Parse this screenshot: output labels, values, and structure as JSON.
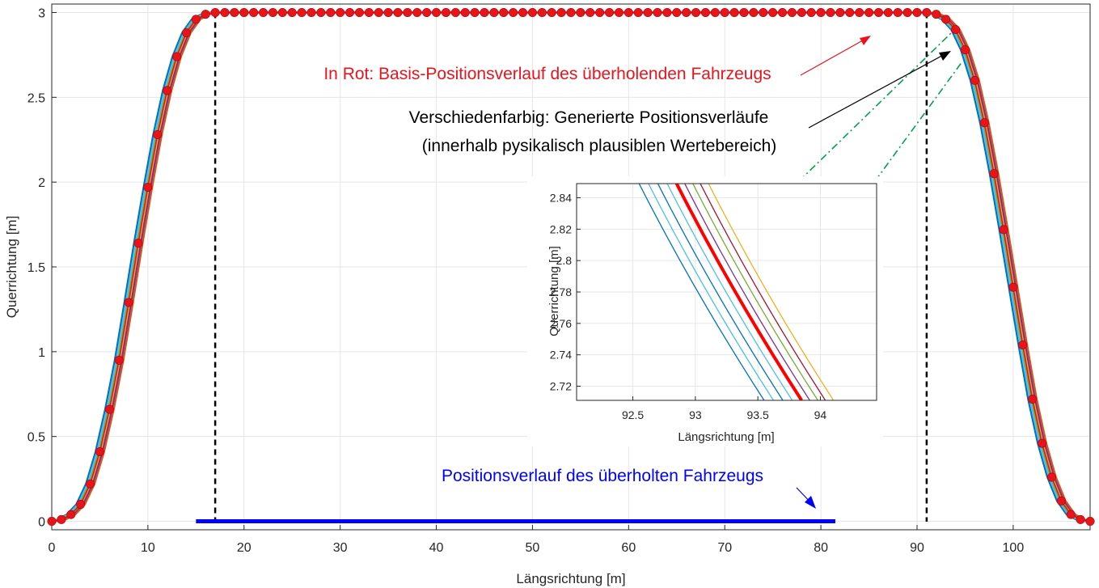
{
  "chart_data": {
    "type": "line",
    "xlabel": "Längsrichtung [m]",
    "ylabel": "Querrichtung [m]",
    "xlim": [
      0,
      108
    ],
    "ylim": [
      -0.05,
      3.05
    ],
    "xticks": [
      0,
      10,
      20,
      30,
      40,
      50,
      60,
      70,
      80,
      90,
      100
    ],
    "yticks": [
      0,
      0.5,
      1,
      1.5,
      2,
      2.5,
      3
    ],
    "grid": true,
    "series": [
      {
        "color": "#e8141c",
        "marker": "circle",
        "x": [
          0,
          1,
          2,
          3,
          4,
          5,
          6,
          7,
          8,
          9,
          10,
          11,
          12,
          13,
          14,
          15,
          16,
          17,
          18,
          19,
          20,
          21,
          22,
          23,
          24,
          25,
          26,
          27,
          28,
          29,
          30,
          31,
          32,
          33,
          34,
          35,
          36,
          37,
          38,
          39,
          40,
          41,
          42,
          43,
          44,
          45,
          46,
          47,
          48,
          49,
          50,
          51,
          52,
          53,
          54,
          55,
          56,
          57,
          58,
          59,
          60,
          61,
          62,
          63,
          64,
          65,
          66,
          67,
          68,
          69,
          70,
          71,
          72,
          73,
          74,
          75,
          76,
          77,
          78,
          79,
          80,
          81,
          82,
          83,
          84,
          85,
          86,
          87,
          88,
          89,
          90,
          91,
          92,
          93,
          94,
          95,
          96,
          97,
          98,
          99,
          100,
          101,
          102,
          103,
          104,
          105,
          106,
          107,
          108
        ],
        "y": [
          0,
          0.01,
          0.04,
          0.1,
          0.22,
          0.41,
          0.66,
          0.95,
          1.29,
          1.64,
          1.97,
          2.28,
          2.54,
          2.74,
          2.88,
          2.96,
          2.99,
          3,
          3,
          3,
          3,
          3,
          3,
          3,
          3,
          3,
          3,
          3,
          3,
          3,
          3,
          3,
          3,
          3,
          3,
          3,
          3,
          3,
          3,
          3,
          3,
          3,
          3,
          3,
          3,
          3,
          3,
          3,
          3,
          3,
          3,
          3,
          3,
          3,
          3,
          3,
          3,
          3,
          3,
          3,
          3,
          3,
          3,
          3,
          3,
          3,
          3,
          3,
          3,
          3,
          3,
          3,
          3,
          3,
          3,
          3,
          3,
          3,
          3,
          3,
          3,
          3,
          3,
          3,
          3,
          3,
          3,
          3,
          3,
          3,
          3,
          3,
          2.99,
          2.96,
          2.9,
          2.78,
          2.6,
          2.35,
          2.05,
          1.72,
          1.38,
          1.04,
          0.72,
          0.46,
          0.26,
          0.12,
          0.04,
          0.01,
          0
        ]
      },
      {
        "color": "#0000ff",
        "x": [
          15,
          81.5
        ],
        "y": [
          0,
          0
        ]
      }
    ],
    "vlines": [
      17,
      91
    ],
    "annotations": [
      {
        "text": "In Rot: Basis-Positionsverlauf des überholenden Fahrzeugs",
        "color": "#e8141c"
      },
      {
        "text": "Verschiedenfarbig: Generierte Positionsverläufe",
        "color": "#000000"
      },
      {
        "text": "(innerhalb pysikalisch plausiblen Wertebereich)",
        "color": "#000000"
      },
      {
        "text": "Positionsverlauf des überholten Fahrzeugs",
        "color": "#0000ff"
      }
    ],
    "inset": {
      "type": "line",
      "xlabel": "Längsrichtung [m]",
      "ylabel": "Querrichtung [m]",
      "xlim": [
        92.05,
        94.45
      ],
      "ylim": [
        2.711,
        2.849
      ],
      "xticks": [
        92.5,
        93,
        93.5,
        94
      ],
      "xtick_labels": [
        "92.5",
        "93",
        "93.5",
        "94"
      ],
      "yticks": [
        2.72,
        2.74,
        2.76,
        2.78,
        2.8,
        2.82,
        2.84
      ],
      "ytick_labels": [
        "2.72",
        "2.74",
        "2.76",
        "2.78",
        "2.8",
        "2.82",
        "2.84"
      ],
      "grid": true,
      "base_curve": {
        "x": [
          92.85,
          93.85
        ],
        "y": [
          2.849,
          2.711
        ]
      },
      "colors": [
        "#0072bd",
        "#4dbeee",
        "#0072bd",
        "#4dbeee",
        "#d95319",
        "#7e2f8e",
        "#77ac30",
        "#a2142f",
        "#edb120"
      ],
      "offsets": [
        -0.3,
        -0.225,
        -0.15,
        -0.075,
        0,
        0.065,
        0.13,
        0.19,
        0.255
      ],
      "base_color": "#ff0000"
    }
  }
}
